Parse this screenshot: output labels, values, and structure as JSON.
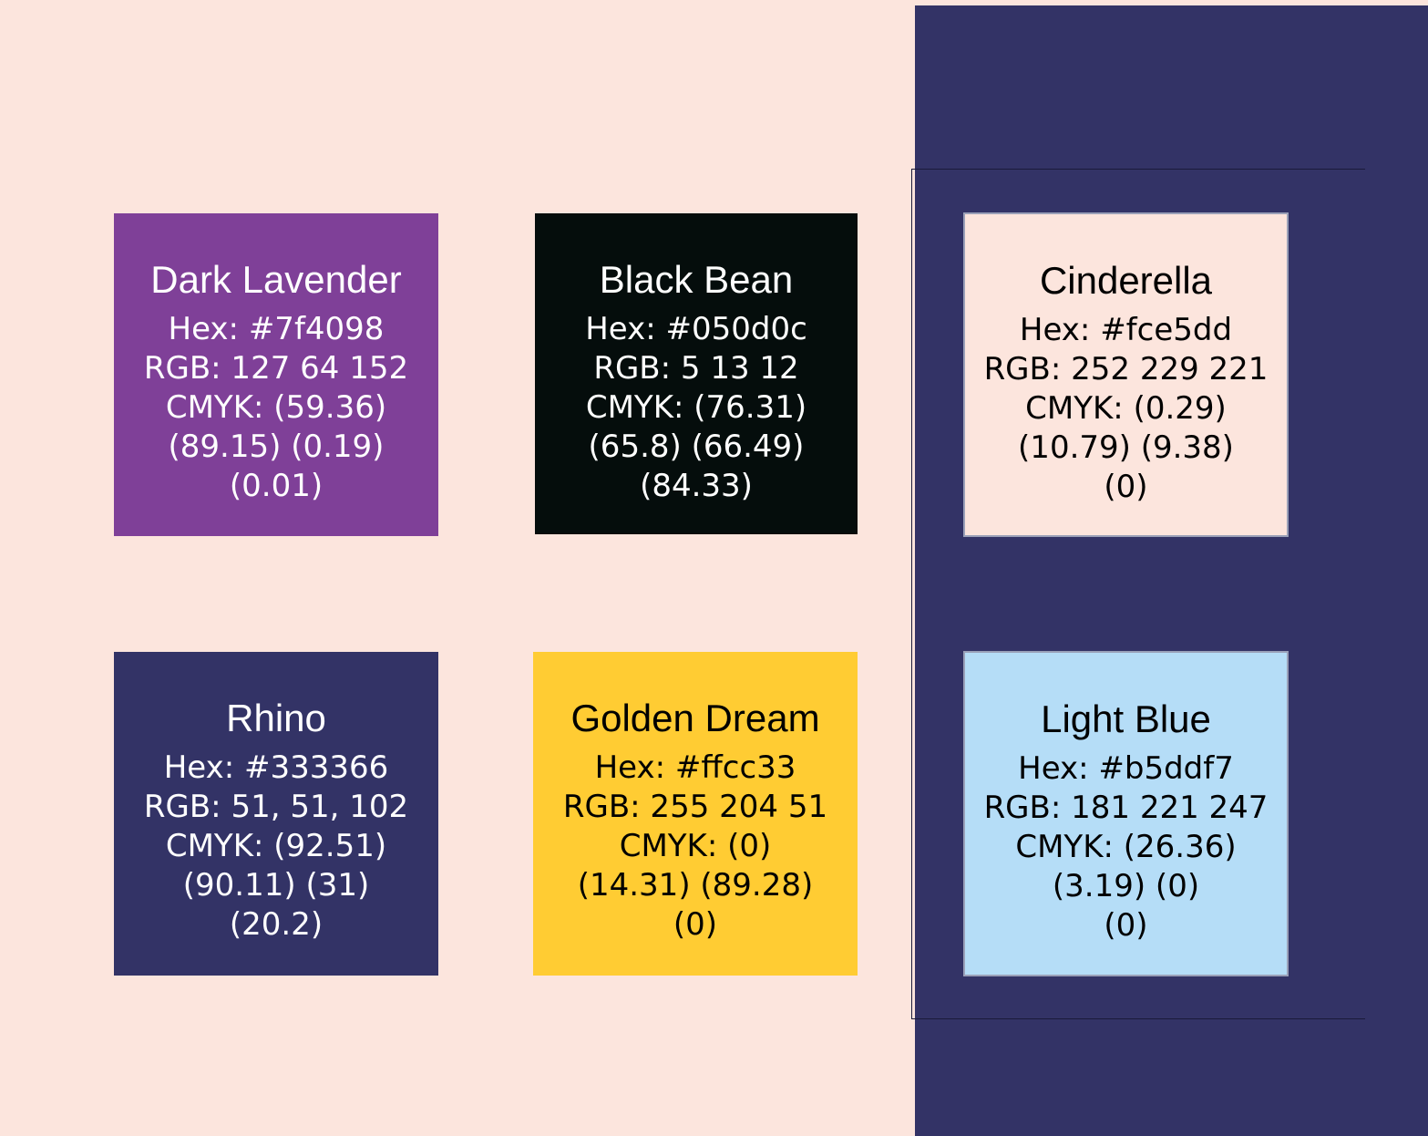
{
  "colors": {
    "page_background": "#fce5dd",
    "panel_background": "#333366"
  },
  "swatches": [
    {
      "name": "Dark Lavender",
      "fill": "#7f4098",
      "text_color": "#ffffff",
      "lines": [
        "Hex: #7f4098",
        "RGB: 127 64 152",
        "CMYK: (59.36)",
        "(89.15) (0.19)",
        "(0.01)"
      ]
    },
    {
      "name": "Black Bean",
      "fill": "#050d0c",
      "text_color": "#ffffff",
      "lines": [
        "Hex: #050d0c",
        "RGB: 5 13 12",
        "CMYK: (76.31)",
        "(65.8) (66.49)",
        "(84.33)"
      ]
    },
    {
      "name": "Cinderella",
      "fill": "#fce5dd",
      "text_color": "#000000",
      "lines": [
        "Hex: #fce5dd",
        "RGB: 252 229 221",
        "CMYK: (0.29)",
        "(10.79) (9.38)",
        "(0)"
      ]
    },
    {
      "name": "Rhino",
      "fill": "#333366",
      "text_color": "#ffffff",
      "lines": [
        "Hex: #333366",
        "RGB: 51, 51, 102",
        "CMYK: (92.51)",
        "(90.11) (31)",
        "(20.2)"
      ]
    },
    {
      "name": "Golden Dream",
      "fill": "#ffcc33",
      "text_color": "#000000",
      "lines": [
        "Hex: #ffcc33",
        "RGB: 255 204 51",
        "CMYK: (0)",
        "(14.31) (89.28)",
        "(0)"
      ]
    },
    {
      "name": "Light Blue",
      "fill": "#b5ddf7",
      "text_color": "#000000",
      "lines": [
        "Hex: #b5ddf7",
        "RGB: 181 221 247",
        "CMYK: (26.36)",
        "(3.19) (0)",
        "(0)"
      ]
    }
  ]
}
